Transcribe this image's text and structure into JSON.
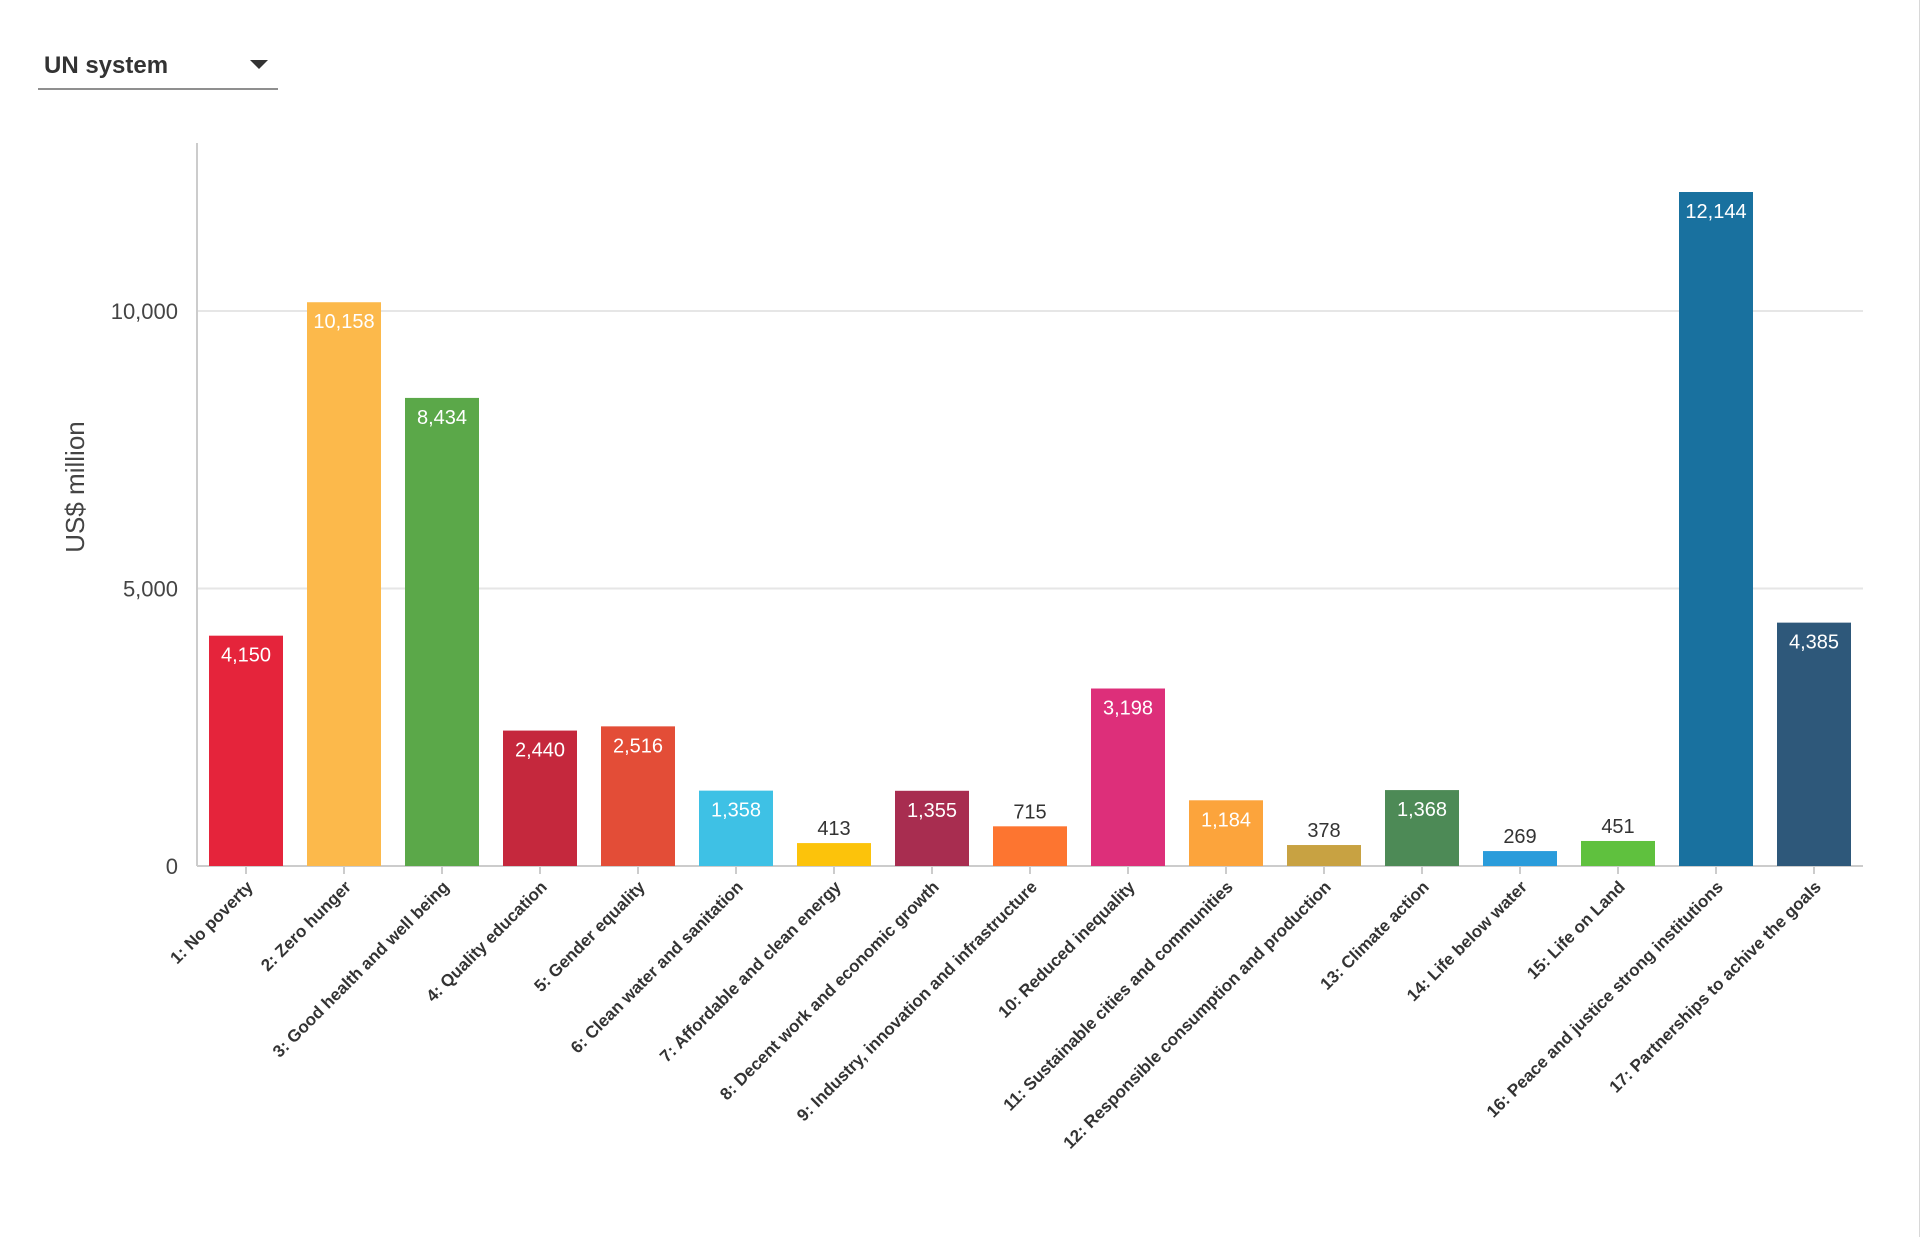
{
  "selector": {
    "value": "UN system"
  },
  "chart_data": {
    "type": "bar",
    "ylabel": "US$ million",
    "ylim": [
      0,
      13000
    ],
    "yticks": [
      0,
      5000,
      10000
    ],
    "ytick_labels": [
      "0",
      "5,000",
      "10,000"
    ],
    "grid": true,
    "categories": [
      "1: No poverty",
      "2: Zero hunger",
      "3: Good health and well being",
      "4: Quality education",
      "5: Gender equality",
      "6: Clean water and sanitation",
      "7: Affordable and clean energy",
      "8: Decent work and economic growth",
      "9: Industry, innovation and infrastructure",
      "10: Reduced inequality",
      "11: Sustainable cities and communities",
      "12: Responsible consumption and production",
      "13: Climate action",
      "14: Life below water",
      "15: Life on Land",
      "16: Peace and justice strong institutions",
      "17: Partnerships to achive the goals"
    ],
    "values": [
      4150,
      10158,
      8434,
      2440,
      2516,
      1358,
      413,
      1355,
      715,
      3198,
      1184,
      378,
      1368,
      269,
      451,
      12144,
      4385
    ],
    "value_labels": [
      "4,150",
      "10,158",
      "8,434",
      "2,440",
      "2,516",
      "1,358",
      "413",
      "1,355",
      "715",
      "3,198",
      "1,184",
      "378",
      "1,368",
      "269",
      "451",
      "12,144",
      "4,385"
    ],
    "colors": [
      "#e5243b",
      "#fcb94b",
      "#5ba849",
      "#c5283d",
      "#e34d37",
      "#3ec1e5",
      "#fcc30b",
      "#a82d50",
      "#fd7530",
      "#dd2f7a",
      "#fca43c",
      "#c8a242",
      "#4d8a56",
      "#2a9cdb",
      "#5fc13e",
      "#19719f",
      "#2e587a"
    ]
  }
}
